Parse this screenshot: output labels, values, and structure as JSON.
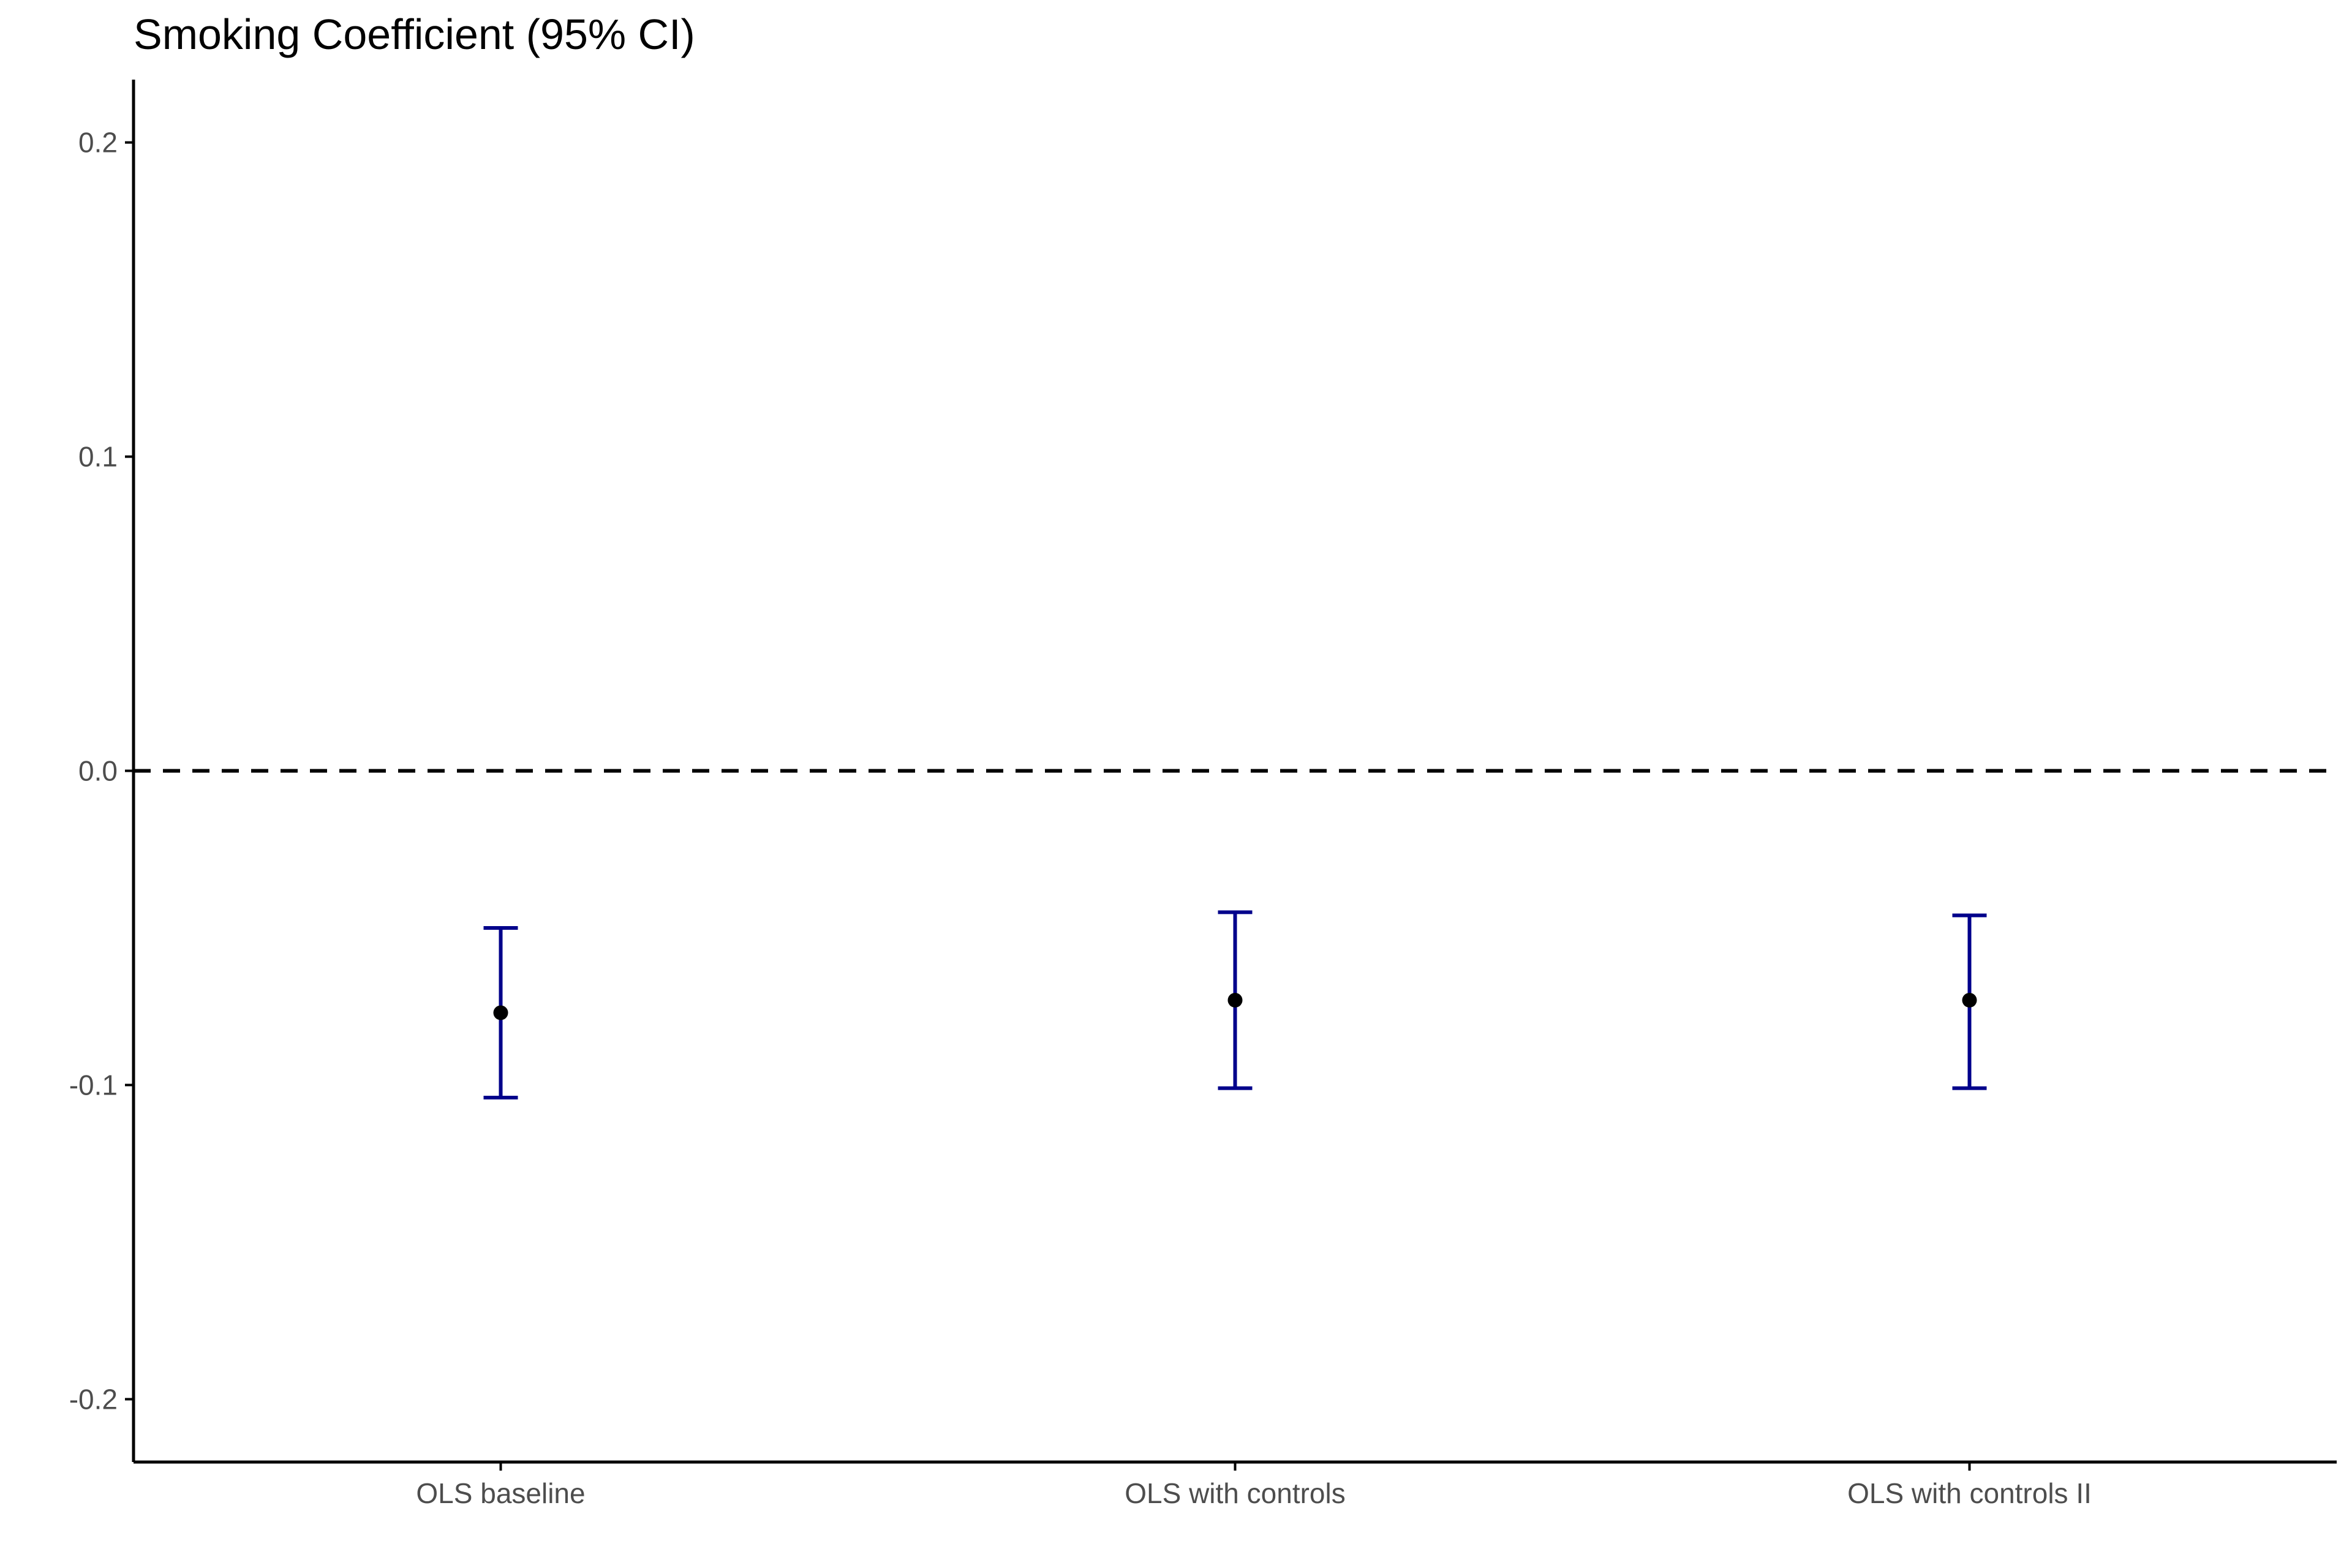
{
  "chart_data": {
    "type": "errorbar",
    "title": "Smoking Coefficient (95% CI)",
    "xlabel": "",
    "ylabel": "",
    "categories": [
      "OLS baseline",
      "OLS with controls",
      "OLS with controls II"
    ],
    "estimates": [
      -0.077,
      -0.073,
      -0.073
    ],
    "ci_lower": [
      -0.104,
      -0.101,
      -0.101
    ],
    "ci_upper": [
      -0.05,
      -0.045,
      -0.046
    ],
    "ylim": [
      -0.22,
      0.22
    ],
    "yticks": [
      0.2,
      0.1,
      0.0,
      -0.1,
      -0.2
    ],
    "ytick_labels": [
      "0.2",
      "0.1",
      "0.0",
      "-0.1",
      "-0.2"
    ],
    "reference_line": 0.0,
    "reference_line_style": "dashed",
    "grid": false,
    "colors": {
      "errorbar": "#00008B",
      "point": "#000000",
      "reference_line": "#000000",
      "axis": "#000000"
    }
  }
}
